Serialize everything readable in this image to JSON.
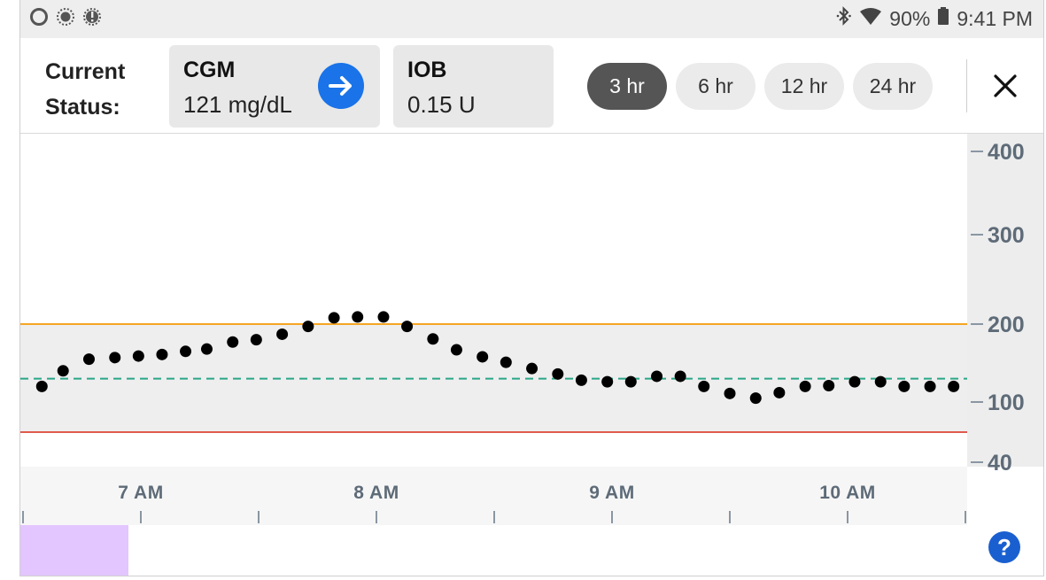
{
  "status_bar": {
    "left_icons": [
      "circle-outline-icon",
      "dotted-circle-icon",
      "alert-circle-icon"
    ],
    "bluetooth_icon": "bluetooth-icon",
    "wifi_icon": "wifi-icon",
    "battery_percent": "90%",
    "battery_icon": "battery-icon",
    "time": "9:41 PM"
  },
  "header": {
    "current_status_label": "Current Status:",
    "cgm": {
      "title": "CGM",
      "value": "121 mg/dL",
      "trend_icon": "arrow-right-icon",
      "trend_color": "#1a73e8"
    },
    "iob": {
      "title": "IOB",
      "value": "0.15 U"
    },
    "ranges": [
      {
        "label": "3 hr",
        "active": true
      },
      {
        "label": "6 hr",
        "active": false
      },
      {
        "label": "12 hr",
        "active": false
      },
      {
        "label": "24 hr",
        "active": false
      }
    ],
    "close_icon": "close-icon"
  },
  "chart_data": {
    "type": "scatter",
    "x_tick_labels": [
      "7 AM",
      "8 AM",
      "9 AM",
      "10 AM"
    ],
    "y_tick_labels": [
      "400",
      "300",
      "200",
      "100",
      "40"
    ],
    "ylim": [
      40,
      400
    ],
    "high_threshold": 200,
    "low_threshold": 70,
    "target": 130,
    "colors": {
      "high": "#f5a623",
      "low": "#e05a4e",
      "target": "#2aa689",
      "band": "#eeeeee",
      "dots": "#000000",
      "marker": "#e3c6ff"
    },
    "x_range_hours": [
      6.45,
      10.5
    ],
    "series": [
      {
        "x": [
          6.45,
          6.58,
          6.67,
          6.78,
          6.89,
          6.99,
          7.09,
          7.19,
          7.28,
          7.39,
          7.49,
          7.6,
          7.71,
          7.82,
          7.92,
          8.03,
          8.13,
          8.24,
          8.34,
          8.45,
          8.55,
          8.66,
          8.77,
          8.87,
          8.98,
          9.08,
          9.19,
          9.29,
          9.39,
          9.5,
          9.61,
          9.71,
          9.82,
          9.92,
          10.03,
          10.14,
          10.24,
          10.35,
          10.45
        ],
        "y": [
          105,
          120,
          140,
          155,
          157,
          159,
          161,
          165,
          168,
          177,
          180,
          187,
          197,
          207,
          208,
          208,
          197,
          181,
          167,
          158,
          151,
          143,
          136,
          128,
          126,
          126,
          133,
          133,
          120,
          111,
          105,
          112,
          120,
          121,
          126,
          126,
          120,
          120,
          120
        ]
      }
    ]
  },
  "help_icon": "help-icon",
  "help_label": "?"
}
